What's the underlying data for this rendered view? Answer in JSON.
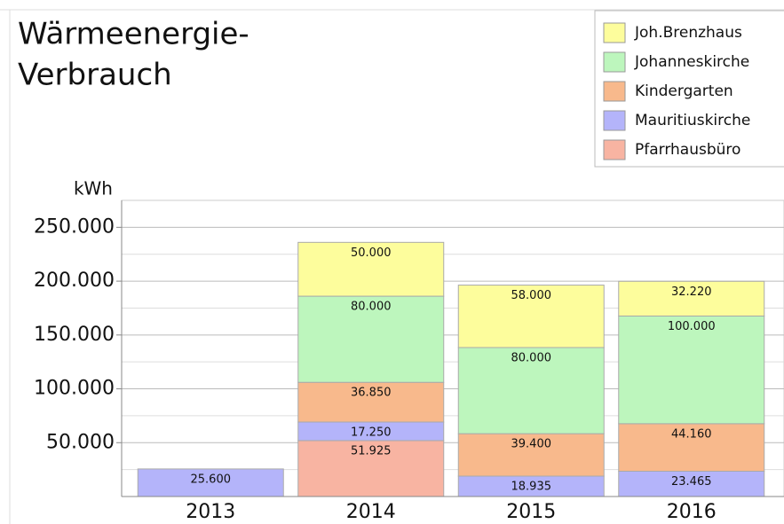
{
  "chart_data": {
    "type": "stacked_bar",
    "title": [
      "Wärmeenergie-",
      "Verbrauch"
    ],
    "y_label": "kWh",
    "categories": [
      "2013",
      "2014",
      "2015",
      "2016"
    ],
    "series": [
      {
        "name": "Pfarrhausbüro",
        "color": "#f8b4a2",
        "values": [
          null,
          51925,
          null,
          null
        ],
        "value_labels": [
          null,
          "51.925",
          null,
          null
        ]
      },
      {
        "name": "Mauritiuskirche",
        "color": "#b4b4fa",
        "values": [
          25600,
          17250,
          18935,
          23465
        ],
        "value_labels": [
          "25.600",
          "17.250",
          "18.935",
          "23.465"
        ]
      },
      {
        "name": "Kindergarten",
        "color": "#f8b98c",
        "values": [
          null,
          36850,
          39400,
          44160
        ],
        "value_labels": [
          null,
          "36.850",
          "39.400",
          "44.160"
        ]
      },
      {
        "name": "Johanneskirche",
        "color": "#bdf6bd",
        "values": [
          null,
          80000,
          80000,
          100000
        ],
        "value_labels": [
          null,
          "80.000",
          "80.000",
          "100.000"
        ]
      },
      {
        "name": "Joh.Brenzhaus",
        "color": "#fdfd9c",
        "values": [
          null,
          50000,
          58000,
          32220
        ],
        "value_labels": [
          null,
          "50.000",
          "58.000",
          "32.220"
        ]
      }
    ],
    "ylim": [
      0,
      275000
    ],
    "yticks": [
      {
        "value": 50000,
        "label": "50.000"
      },
      {
        "value": 100000,
        "label": "100.000"
      },
      {
        "value": 150000,
        "label": "150.000"
      },
      {
        "value": 200000,
        "label": "200.000"
      },
      {
        "value": 250000,
        "label": "250.000"
      }
    ],
    "grid": true,
    "legend": "top-right"
  }
}
